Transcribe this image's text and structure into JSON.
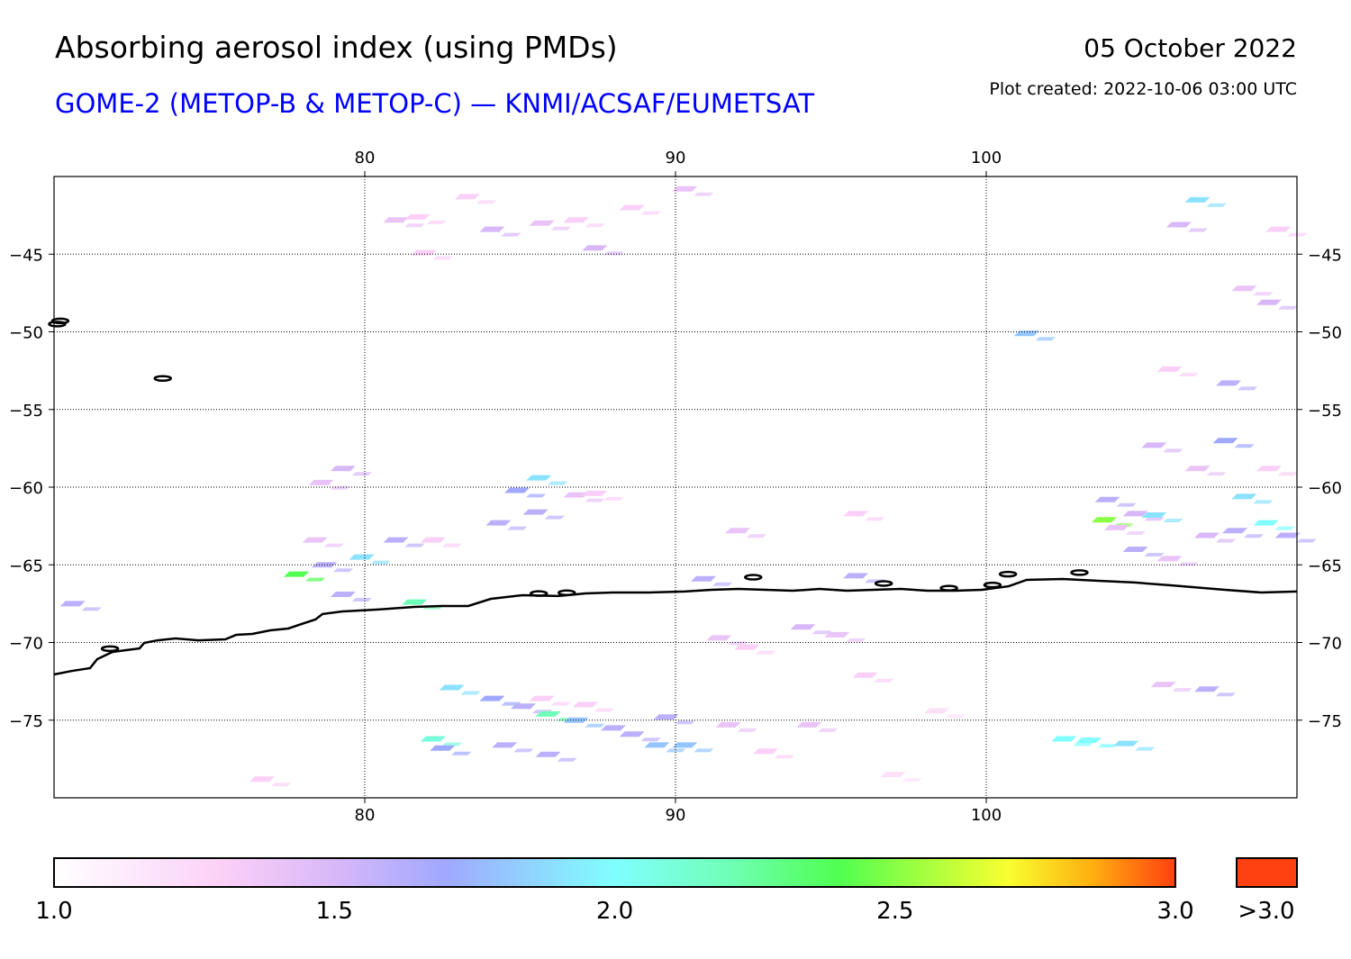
{
  "header": {
    "title": "Absorbing aerosol index (using PMDs)",
    "subtitle": "GOME-2 (METOP-B & METOP-C) — KNMI/ACSAF/EUMETSAT",
    "date": "05 October 2022",
    "plot_created": "Plot created: 2022-10-06 03:00 UTC"
  },
  "chart_data": {
    "type": "heatmap",
    "title": "Absorbing aerosol index (using PMDs)",
    "lon_range": [
      70,
      110
    ],
    "lat_range": [
      -80,
      -40
    ],
    "lon_ticks": [
      {
        "v": 80,
        "label": "80"
      },
      {
        "v": 90,
        "label": "90"
      },
      {
        "v": 100,
        "label": "100"
      }
    ],
    "lat_ticks": [
      {
        "v": -45,
        "label": "−45"
      },
      {
        "v": -50,
        "label": "−50"
      },
      {
        "v": -55,
        "label": "−55"
      },
      {
        "v": -60,
        "label": "−60"
      },
      {
        "v": -65,
        "label": "−65"
      },
      {
        "v": -70,
        "label": "−70"
      },
      {
        "v": -75,
        "label": "−75"
      }
    ],
    "grid": true,
    "colorbar": {
      "range": [
        1.0,
        3.0
      ],
      "ticks": [
        {
          "v": 1.0,
          "label": "1.0"
        },
        {
          "v": 1.5,
          "label": "1.5"
        },
        {
          "v": 2.0,
          "label": "2.0"
        },
        {
          "v": 2.5,
          "label": "2.5"
        },
        {
          "v": 3.0,
          "label": "3.0"
        }
      ],
      "over_label": ">3.0",
      "over_color": "#ff4010",
      "stops": [
        [
          1.0,
          "#ffffff"
        ],
        [
          1.3,
          "#fbd0f8"
        ],
        [
          1.5,
          "#d8b8f8"
        ],
        [
          1.7,
          "#a0a8ff"
        ],
        [
          2.0,
          "#80ffff"
        ],
        [
          2.2,
          "#70ffb8"
        ],
        [
          2.4,
          "#50ff50"
        ],
        [
          2.7,
          "#f8ff30"
        ],
        [
          2.85,
          "#ffb010"
        ],
        [
          3.0,
          "#ff4010"
        ]
      ]
    },
    "coastline": [
      [
        70,
        -72.06
      ],
      [
        70.58,
        -71.83
      ],
      [
        71.16,
        -71.65
      ],
      [
        71.39,
        -71.07
      ],
      [
        71.88,
        -70.61
      ],
      [
        72.32,
        -70.49
      ],
      [
        72.75,
        -70.38
      ],
      [
        72.9,
        -70.03
      ],
      [
        73.33,
        -69.86
      ],
      [
        73.91,
        -69.74
      ],
      [
        74.64,
        -69.86
      ],
      [
        75.51,
        -69.8
      ],
      [
        75.86,
        -69.51
      ],
      [
        76.38,
        -69.45
      ],
      [
        76.96,
        -69.22
      ],
      [
        77.54,
        -69.1
      ],
      [
        77.97,
        -68.81
      ],
      [
        78.41,
        -68.52
      ],
      [
        78.64,
        -68.17
      ],
      [
        79.28,
        -68.0
      ],
      [
        80.43,
        -67.88
      ],
      [
        81.59,
        -67.71
      ],
      [
        82.46,
        -67.65
      ],
      [
        83.33,
        -67.65
      ],
      [
        84.06,
        -67.19
      ],
      [
        85.07,
        -66.96
      ],
      [
        86.23,
        -67.01
      ],
      [
        87.1,
        -66.84
      ],
      [
        87.97,
        -66.78
      ],
      [
        89.13,
        -66.78
      ],
      [
        90.29,
        -66.72
      ],
      [
        91.16,
        -66.61
      ],
      [
        92.03,
        -66.55
      ],
      [
        92.9,
        -66.61
      ],
      [
        93.77,
        -66.67
      ],
      [
        94.64,
        -66.55
      ],
      [
        95.51,
        -66.67
      ],
      [
        96.38,
        -66.61
      ],
      [
        97.25,
        -66.55
      ],
      [
        98.12,
        -66.67
      ],
      [
        98.99,
        -66.67
      ],
      [
        99.86,
        -66.61
      ],
      [
        100.72,
        -66.38
      ],
      [
        101.3,
        -65.97
      ],
      [
        102.46,
        -65.91
      ],
      [
        103.62,
        -66.03
      ],
      [
        104.78,
        -66.14
      ],
      [
        105.94,
        -66.32
      ],
      [
        107.68,
        -66.61
      ],
      [
        108.84,
        -66.78
      ],
      [
        110,
        -66.72
      ]
    ],
    "islands": [
      [
        70.2,
        -49.3
      ],
      [
        70.1,
        -49.5
      ],
      [
        73.5,
        -53.0
      ],
      [
        71.8,
        -70.4
      ],
      [
        85.6,
        -66.85
      ],
      [
        86.5,
        -66.8
      ],
      [
        92.5,
        -65.8
      ],
      [
        96.7,
        -66.2
      ],
      [
        98.8,
        -66.5
      ],
      [
        100.2,
        -66.3
      ],
      [
        100.7,
        -65.6
      ],
      [
        103.0,
        -65.5
      ]
    ],
    "pixels": [
      [
        81.0,
        -42.8,
        1.4
      ],
      [
        81.7,
        -42.6,
        1.3
      ],
      [
        83.3,
        -41.3,
        1.3
      ],
      [
        84.1,
        -43.4,
        1.5
      ],
      [
        85.7,
        -43.0,
        1.4
      ],
      [
        86.8,
        -42.8,
        1.3
      ],
      [
        87.4,
        -44.6,
        1.5
      ],
      [
        81.9,
        -44.9,
        1.3
      ],
      [
        88.6,
        -42.0,
        1.3
      ],
      [
        90.3,
        -40.8,
        1.4
      ],
      [
        106.8,
        -41.5,
        1.9
      ],
      [
        106.2,
        -43.1,
        1.5
      ],
      [
        109.4,
        -43.4,
        1.3
      ],
      [
        108.3,
        -47.2,
        1.4
      ],
      [
        109.1,
        -48.1,
        1.5
      ],
      [
        101.3,
        -50.1,
        1.8
      ],
      [
        107.8,
        -53.3,
        1.6
      ],
      [
        105.9,
        -52.4,
        1.3
      ],
      [
        105.4,
        -57.3,
        1.5
      ],
      [
        107.7,
        -57.0,
        1.7
      ],
      [
        106.8,
        -58.8,
        1.4
      ],
      [
        109.1,
        -58.8,
        1.3
      ],
      [
        79.3,
        -58.8,
        1.5
      ],
      [
        78.6,
        -59.7,
        1.4
      ],
      [
        84.9,
        -60.2,
        1.7
      ],
      [
        85.6,
        -59.4,
        1.9
      ],
      [
        85.5,
        -61.6,
        1.6
      ],
      [
        84.3,
        -62.3,
        1.6
      ],
      [
        86.8,
        -60.5,
        1.4
      ],
      [
        87.4,
        -60.4,
        1.3
      ],
      [
        81.0,
        -63.4,
        1.6
      ],
      [
        79.9,
        -64.5,
        1.9
      ],
      [
        77.8,
        -65.6,
        2.4
      ],
      [
        78.7,
        -65.0,
        1.6
      ],
      [
        79.3,
        -66.9,
        1.6
      ],
      [
        81.6,
        -67.4,
        2.2
      ],
      [
        70.6,
        -67.5,
        1.6
      ],
      [
        78.4,
        -63.4,
        1.4
      ],
      [
        82.2,
        -63.4,
        1.3
      ],
      [
        92.0,
        -62.8,
        1.4
      ],
      [
        95.8,
        -61.7,
        1.3
      ],
      [
        95.8,
        -65.7,
        1.6
      ],
      [
        90.9,
        -65.9,
        1.6
      ],
      [
        103.8,
        -62.1,
        2.5
      ],
      [
        103.9,
        -60.8,
        1.6
      ],
      [
        104.8,
        -61.7,
        1.5
      ],
      [
        105.4,
        -61.8,
        1.9
      ],
      [
        108.3,
        -60.6,
        1.9
      ],
      [
        109.0,
        -62.3,
        2.0
      ],
      [
        108.0,
        -62.8,
        1.6
      ],
      [
        107.1,
        -63.1,
        1.5
      ],
      [
        104.8,
        -64.0,
        1.6
      ],
      [
        105.9,
        -64.6,
        1.4
      ],
      [
        104.2,
        -62.6,
        1.4
      ],
      [
        109.7,
        -63.1,
        1.6
      ],
      [
        82.8,
        -72.9,
        1.9
      ],
      [
        84.1,
        -73.6,
        1.7
      ],
      [
        85.1,
        -74.1,
        1.6
      ],
      [
        85.9,
        -74.6,
        2.2
      ],
      [
        86.8,
        -75.0,
        1.8
      ],
      [
        88.0,
        -75.5,
        1.6
      ],
      [
        89.7,
        -74.8,
        1.6
      ],
      [
        88.6,
        -75.9,
        1.6
      ],
      [
        90.3,
        -76.6,
        1.8
      ],
      [
        89.4,
        -76.6,
        1.8
      ],
      [
        82.2,
        -76.2,
        2.1
      ],
      [
        82.5,
        -76.8,
        1.7
      ],
      [
        84.5,
        -76.6,
        1.6
      ],
      [
        85.9,
        -77.2,
        1.6
      ],
      [
        91.7,
        -75.3,
        1.4
      ],
      [
        94.3,
        -75.3,
        1.4
      ],
      [
        103.3,
        -76.3,
        2.0
      ],
      [
        102.5,
        -76.2,
        2.0
      ],
      [
        104.5,
        -76.5,
        1.9
      ],
      [
        107.1,
        -73.0,
        1.6
      ],
      [
        105.7,
        -72.7,
        1.4
      ],
      [
        94.1,
        -69.0,
        1.5
      ],
      [
        95.2,
        -69.5,
        1.4
      ],
      [
        91.4,
        -69.7,
        1.4
      ],
      [
        92.3,
        -70.3,
        1.3
      ],
      [
        96.1,
        -72.1,
        1.3
      ],
      [
        97.0,
        -78.5,
        1.2
      ],
      [
        92.9,
        -77.0,
        1.3
      ],
      [
        76.7,
        -78.8,
        1.3
      ],
      [
        98.4,
        -74.4,
        1.2
      ],
      [
        85.7,
        -73.6,
        1.3
      ],
      [
        87.1,
        -74.0,
        1.3
      ]
    ]
  }
}
